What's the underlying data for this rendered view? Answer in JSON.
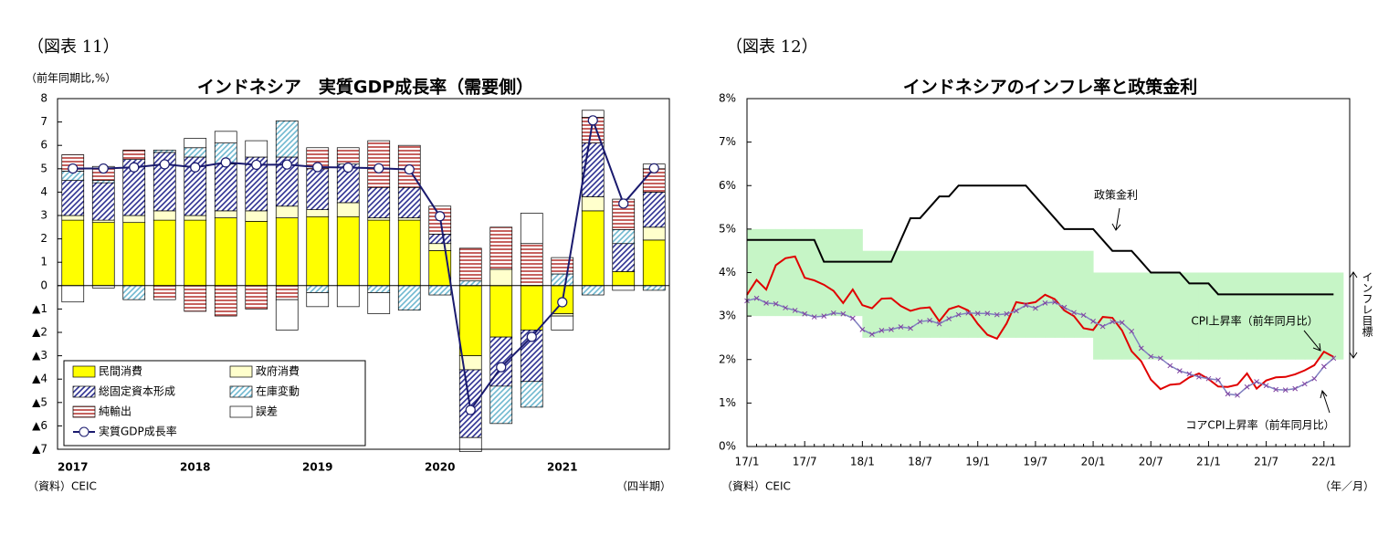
{
  "chart_data": [
    {
      "type": "bar",
      "stacked": true,
      "figure_label": "（図表 11）",
      "title": "インドネシア　実質GDP成長率（需要側）",
      "y_label": "（前年同期比,%）",
      "x_label": "（四半期）",
      "source": "（資料）CEIC",
      "categories": [
        "2017",
        null,
        null,
        null,
        "2018",
        null,
        null,
        null,
        "2019",
        null,
        null,
        null,
        "2020",
        null,
        null,
        null,
        "2021",
        null,
        null,
        null
      ],
      "ylim": [
        -7,
        8
      ],
      "yticks": [
        {
          "value": -7,
          "label": "▲7"
        },
        {
          "value": -6,
          "label": "▲6"
        },
        {
          "value": -5,
          "label": "▲5"
        },
        {
          "value": -4,
          "label": "▲4"
        },
        {
          "value": -3,
          "label": "▲3"
        },
        {
          "value": -2,
          "label": "▲2"
        },
        {
          "value": -1,
          "label": "▲1"
        },
        0,
        1,
        2,
        3,
        4,
        5,
        6,
        7,
        8
      ],
      "series": [
        {
          "name": "民間消費",
          "color": "#ffff00",
          "values": [
            2.8,
            2.7,
            2.7,
            2.8,
            2.8,
            2.9,
            2.75,
            2.9,
            2.95,
            2.95,
            2.8,
            2.8,
            1.5,
            -3.0,
            -2.2,
            -1.9,
            -1.2,
            3.2,
            0.6,
            1.95
          ]
        },
        {
          "name": "政府消費",
          "color": "#ffffcc",
          "values": [
            0.2,
            0.1,
            0.3,
            0.4,
            0.2,
            0.3,
            0.45,
            0.5,
            0.3,
            0.6,
            0.1,
            0.1,
            0.3,
            -0.6,
            0.7,
            0.0,
            -0.1,
            0.6,
            0.0,
            0.55
          ]
        },
        {
          "name": "総固定資本形成",
          "color": "#2e3192",
          "pattern": "diagonal",
          "values": [
            1.5,
            1.6,
            2.4,
            2.5,
            2.5,
            2.0,
            2.3,
            2.1,
            1.75,
            1.65,
            1.3,
            1.3,
            0.4,
            -2.9,
            -2.1,
            -2.2,
            0.0,
            2.3,
            1.2,
            1.5
          ]
        },
        {
          "name": "在庫変動",
          "color": "#6fb8d0",
          "pattern": "diagonal",
          "values": [
            0.4,
            0.1,
            -0.6,
            0.1,
            0.4,
            0.9,
            0.0,
            1.55,
            -0.3,
            0.0,
            -0.3,
            -1.05,
            -0.4,
            0.2,
            -1.6,
            -1.1,
            0.5,
            -0.4,
            0.6,
            -0.2
          ]
        },
        {
          "name": "純輸出",
          "color": "#c0504d",
          "pattern": "horizontal",
          "values": [
            0.7,
            0.6,
            0.4,
            -0.6,
            -1.1,
            -1.3,
            -1.0,
            -0.6,
            0.9,
            0.7,
            2.0,
            1.8,
            1.2,
            1.4,
            1.8,
            1.8,
            0.7,
            1.1,
            1.3,
            1.0
          ]
        },
        {
          "name": "誤差",
          "color": "#ffffff",
          "values": [
            -0.7,
            -0.1,
            0.0,
            0.0,
            0.4,
            0.5,
            0.7,
            -1.3,
            -0.6,
            -0.9,
            -0.9,
            0.0,
            0.0,
            -0.6,
            0.0,
            1.3,
            -0.6,
            0.3,
            -0.2,
            0.2
          ]
        },
        {
          "name": "実質GDP成長率",
          "type": "line",
          "color": "#1a1a6e",
          "values": [
            5.01,
            5.01,
            5.06,
            5.19,
            5.06,
            5.27,
            5.17,
            5.18,
            5.07,
            5.05,
            5.02,
            4.97,
            2.97,
            -5.32,
            -3.49,
            -2.19,
            -0.71,
            7.07,
            3.51,
            5.02
          ]
        }
      ]
    },
    {
      "type": "line",
      "figure_label": "（図表 12）",
      "title": "インドネシアのインフレ率と政策金利",
      "x_label": "（年／月）",
      "source": "（資料）CEIC",
      "categories": [
        "17/1",
        null,
        null,
        null,
        null,
        null,
        "17/7",
        null,
        null,
        null,
        null,
        null,
        "18/1",
        null,
        null,
        null,
        null,
        null,
        "18/7",
        null,
        null,
        null,
        null,
        null,
        "19/1",
        null,
        null,
        null,
        null,
        null,
        "19/7",
        null,
        null,
        null,
        null,
        null,
        "20/1",
        null,
        null,
        null,
        null,
        null,
        "20/7",
        null,
        null,
        null,
        null,
        null,
        "21/1",
        null,
        null,
        null,
        null,
        null,
        "21/7",
        null,
        null,
        null,
        null,
        null,
        "22/1",
        null
      ],
      "ylim": [
        0,
        8
      ],
      "yticks": [
        {
          "value": 0,
          "label": "0%"
        },
        {
          "value": 1,
          "label": "1%"
        },
        {
          "value": 2,
          "label": "2%"
        },
        {
          "value": 3,
          "label": "3%"
        },
        {
          "value": 4,
          "label": "4%"
        },
        {
          "value": 5,
          "label": "5%"
        },
        {
          "value": 6,
          "label": "6%"
        },
        {
          "value": 7,
          "label": "7%"
        },
        {
          "value": 8,
          "label": "8%"
        }
      ],
      "band": {
        "name": "インフレ目標",
        "color": "#c6f5c6",
        "lower": [
          3,
          3,
          3,
          3,
          3,
          3,
          3,
          3,
          3,
          3,
          3,
          3,
          2.5,
          2.5,
          2.5,
          2.5,
          2.5,
          2.5,
          2.5,
          2.5,
          2.5,
          2.5,
          2.5,
          2.5,
          2.5,
          2.5,
          2.5,
          2.5,
          2.5,
          2.5,
          2.5,
          2.5,
          2.5,
          2.5,
          2.5,
          2.5,
          2,
          2,
          2,
          2,
          2,
          2,
          2,
          2,
          2,
          2,
          2,
          2,
          2,
          2,
          2,
          2,
          2,
          2,
          2,
          2,
          2,
          2,
          2,
          2,
          2,
          2
        ],
        "upper": [
          5,
          5,
          5,
          5,
          5,
          5,
          5,
          5,
          5,
          5,
          5,
          5,
          4.5,
          4.5,
          4.5,
          4.5,
          4.5,
          4.5,
          4.5,
          4.5,
          4.5,
          4.5,
          4.5,
          4.5,
          4.5,
          4.5,
          4.5,
          4.5,
          4.5,
          4.5,
          4.5,
          4.5,
          4.5,
          4.5,
          4.5,
          4.5,
          4,
          4,
          4,
          4,
          4,
          4,
          4,
          4,
          4,
          4,
          4,
          4,
          4,
          4,
          4,
          4,
          4,
          4,
          4,
          4,
          4,
          4,
          4,
          4,
          4,
          4
        ]
      },
      "series": [
        {
          "name": "政策金利",
          "color": "#000000",
          "values": [
            4.75,
            4.75,
            4.75,
            4.75,
            4.75,
            4.75,
            4.75,
            4.75,
            4.25,
            4.25,
            4.25,
            4.25,
            4.25,
            4.25,
            4.25,
            4.25,
            4.75,
            5.25,
            5.25,
            5.5,
            5.75,
            5.75,
            6.0,
            6.0,
            6.0,
            6.0,
            6.0,
            6.0,
            6.0,
            6.0,
            5.75,
            5.5,
            5.25,
            5.0,
            5.0,
            5.0,
            5.0,
            4.75,
            4.5,
            4.5,
            4.5,
            4.25,
            4.0,
            4.0,
            4.0,
            4.0,
            3.75,
            3.75,
            3.75,
            3.5,
            3.5,
            3.5,
            3.5,
            3.5,
            3.5,
            3.5,
            3.5,
            3.5,
            3.5,
            3.5,
            3.5,
            3.5
          ]
        },
        {
          "name": "CPI上昇率（前年同月比）",
          "color": "#e00000",
          "values": [
            3.49,
            3.83,
            3.61,
            4.17,
            4.33,
            4.37,
            3.88,
            3.82,
            3.72,
            3.58,
            3.3,
            3.61,
            3.25,
            3.18,
            3.4,
            3.41,
            3.23,
            3.12,
            3.18,
            3.2,
            2.88,
            3.16,
            3.23,
            3.13,
            2.82,
            2.57,
            2.48,
            2.83,
            3.32,
            3.28,
            3.32,
            3.49,
            3.39,
            3.13,
            3.0,
            2.72,
            2.68,
            2.98,
            2.96,
            2.67,
            2.19,
            1.96,
            1.54,
            1.32,
            1.42,
            1.44,
            1.59,
            1.68,
            1.55,
            1.38,
            1.37,
            1.42,
            1.68,
            1.33,
            1.52,
            1.59,
            1.6,
            1.66,
            1.75,
            1.87,
            2.18,
            2.06
          ]
        },
        {
          "name": "コアCPI上昇率（前年同月比）",
          "color": "#8080c0",
          "marker": "x",
          "values": [
            3.35,
            3.41,
            3.3,
            3.28,
            3.19,
            3.13,
            3.05,
            2.98,
            3.0,
            3.07,
            3.05,
            2.95,
            2.69,
            2.58,
            2.67,
            2.69,
            2.75,
            2.72,
            2.87,
            2.9,
            2.82,
            2.94,
            3.03,
            3.07,
            3.06,
            3.06,
            3.03,
            3.05,
            3.12,
            3.25,
            3.18,
            3.3,
            3.32,
            3.2,
            3.08,
            3.02,
            2.88,
            2.76,
            2.87,
            2.85,
            2.65,
            2.26,
            2.07,
            2.03,
            1.86,
            1.74,
            1.67,
            1.6,
            1.56,
            1.53,
            1.21,
            1.18,
            1.37,
            1.49,
            1.4,
            1.31,
            1.3,
            1.33,
            1.44,
            1.56,
            1.84,
            2.03
          ]
        }
      ]
    }
  ]
}
